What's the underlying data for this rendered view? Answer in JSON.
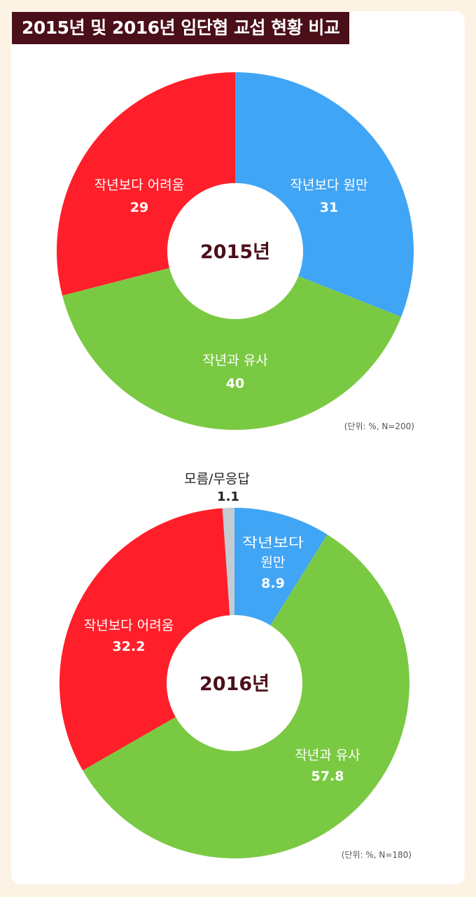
{
  "title": "2015년 및 2016년 임단협 교섭 현황 비교",
  "colors": {
    "background": "#fdf3e5",
    "title_bg": "#4b0f1a",
    "smoother": "#41a5f5",
    "harder": "#ff1f2a",
    "similar": "#7ac943",
    "unknown": "#c4ccd3"
  },
  "chart_data": [
    {
      "type": "pie",
      "title": "2015년",
      "unit_note": "(단위: %, N=200)",
      "slices": [
        {
          "label": "작년보다 원만",
          "value": 31,
          "value_text": "31",
          "color": "#41a5f5"
        },
        {
          "label": "작년과 유사",
          "value": 40,
          "value_text": "40",
          "color": "#7ac943"
        },
        {
          "label": "작년보다 어려움",
          "value": 29,
          "value_text": "29",
          "color": "#ff1f2a"
        }
      ]
    },
    {
      "type": "pie",
      "title": "2016년",
      "unit_note": "(단위: %, N=180)",
      "slices": [
        {
          "label": "작년보다 원만",
          "value": 8.9,
          "value_text": "8.9",
          "color": "#41a5f5"
        },
        {
          "label": "작년과 유사",
          "value": 57.8,
          "value_text": "57.8",
          "color": "#7ac943"
        },
        {
          "label": "작년보다 어려움",
          "value": 32.2,
          "value_text": "32.2",
          "color": "#ff1f2a"
        },
        {
          "label": "모름/무응답",
          "value": 1.1,
          "value_text": "1.1",
          "color": "#c4ccd3"
        }
      ]
    }
  ]
}
